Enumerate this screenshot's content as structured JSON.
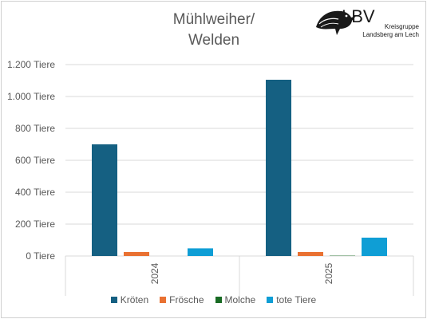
{
  "chart_data": {
    "type": "bar",
    "title_lines": [
      "Mühlweiher/",
      "Welden"
    ],
    "categories": [
      "2024",
      "2025"
    ],
    "series": [
      {
        "name": "Kröten",
        "color": "#156082",
        "values": [
          700,
          1105
        ]
      },
      {
        "name": "Frösche",
        "color": "#E97132",
        "values": [
          25,
          25
        ]
      },
      {
        "name": "Molche",
        "color": "#196B24",
        "values": [
          0,
          2
        ]
      },
      {
        "name": "tote Tiere",
        "color": "#0F9ED5",
        "values": [
          48,
          115
        ]
      }
    ],
    "y_ticks": [
      0,
      200,
      400,
      600,
      800,
      1000,
      1200
    ],
    "y_tick_labels": [
      "0 Tiere",
      "200 Tiere",
      "400 Tiere",
      "600 Tiere",
      "800 Tiere",
      "1.000 Tiere",
      "1.200 Tiere"
    ],
    "ylim": [
      0,
      1200
    ],
    "grid": true,
    "legend_position": "bottom"
  },
  "logo": {
    "brand": "LBV",
    "line1": "Kreisgruppe",
    "line2": "Landsberg am Lech",
    "icon": "bird-silhouette-icon"
  }
}
